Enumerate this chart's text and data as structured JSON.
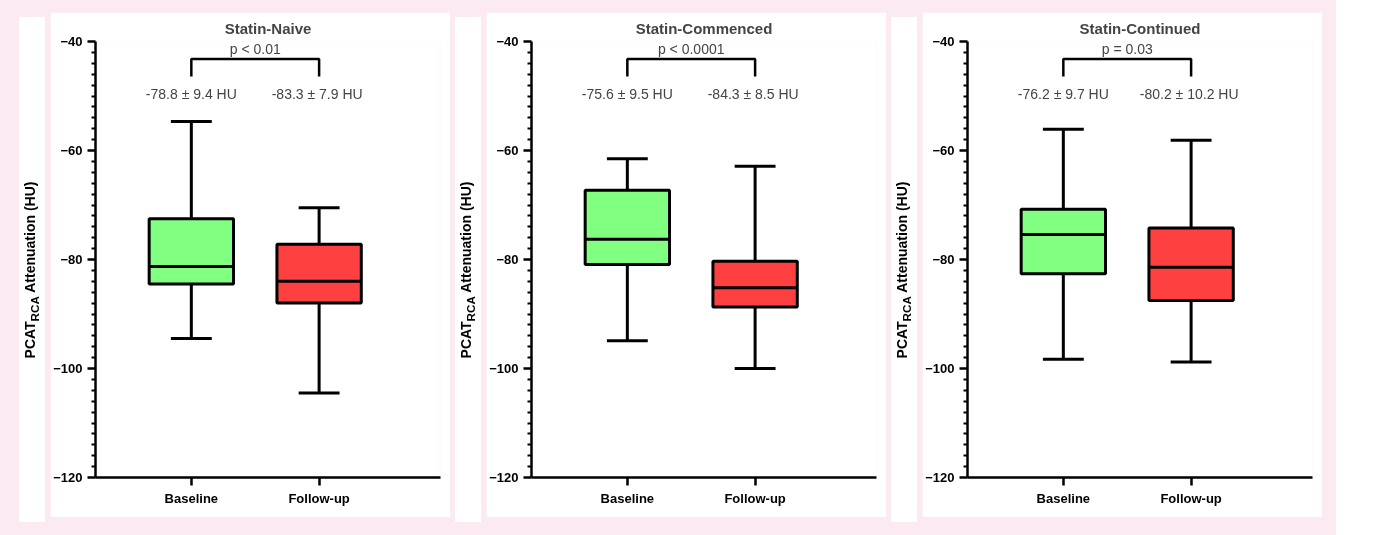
{
  "chart_data": [
    {
      "type": "box",
      "title": "Statin-Naive",
      "ylabel": "PCAT$_{RCA}$ Attenuation (HU)",
      "categories": [
        "Baseline",
        "Follow-up"
      ],
      "colors": [
        "#80ff80",
        "#ff4040"
      ],
      "boxes": [
        {
          "low": -94.5,
          "q1": -84.5,
          "median": -81.3,
          "q3": -72.5,
          "high": -54.7
        },
        {
          "low": -104.5,
          "q1": -88.0,
          "median": -84.0,
          "q3": -77.2,
          "high": -70.5
        }
      ],
      "ylim": [
        -120,
        -40
      ],
      "yticks": [
        -120,
        -100,
        -80,
        -60,
        -40
      ],
      "grid": false,
      "annotations": [
        "p < 0.01",
        "-78.8 ± 9.4 HU",
        "-83.3 ± 7.9  HU"
      ]
    },
    {
      "type": "box",
      "title": "Statin-Commenced",
      "ylabel": "PCAT$_{RCA}$ Attenuation (HU)",
      "categories": [
        "Baseline",
        "Follow-up"
      ],
      "colors": [
        "#80ff80",
        "#ff4040"
      ],
      "boxes": [
        {
          "low": -94.9,
          "q1": -80.9,
          "median": -76.3,
          "q3": -67.3,
          "high": -61.5
        },
        {
          "low": -100.0,
          "q1": -88.7,
          "median": -85.2,
          "q3": -80.3,
          "high": -62.9
        }
      ],
      "ylim": [
        -120,
        -40
      ],
      "yticks": [
        -120,
        -100,
        -80,
        -60,
        -40
      ],
      "grid": false,
      "annotations": [
        "p < 0.0001",
        "-75.6 ± 9.5 HU",
        "-84.3 ± 8.5  HU"
      ]
    },
    {
      "type": "box",
      "title": "Statin-Continued",
      "ylabel": "PCAT$_{RCA}$ Attenuation (HU)",
      "categories": [
        "Baseline",
        "Follow-up"
      ],
      "colors": [
        "#80ff80",
        "#ff4040"
      ],
      "boxes": [
        {
          "low": -98.3,
          "q1": -82.6,
          "median": -75.4,
          "q3": -70.8,
          "high": -56.1
        },
        {
          "low": -98.8,
          "q1": -87.5,
          "median": -81.4,
          "q3": -74.2,
          "high": -58.1
        }
      ],
      "ylim": [
        -120,
        -40
      ],
      "yticks": [
        -120,
        -100,
        -80,
        -60,
        -40
      ],
      "grid": false,
      "annotations": [
        "p = 0.03",
        "-76.2 ± 9.7 HU",
        "-80.2 ± 10.2  HU"
      ]
    }
  ]
}
